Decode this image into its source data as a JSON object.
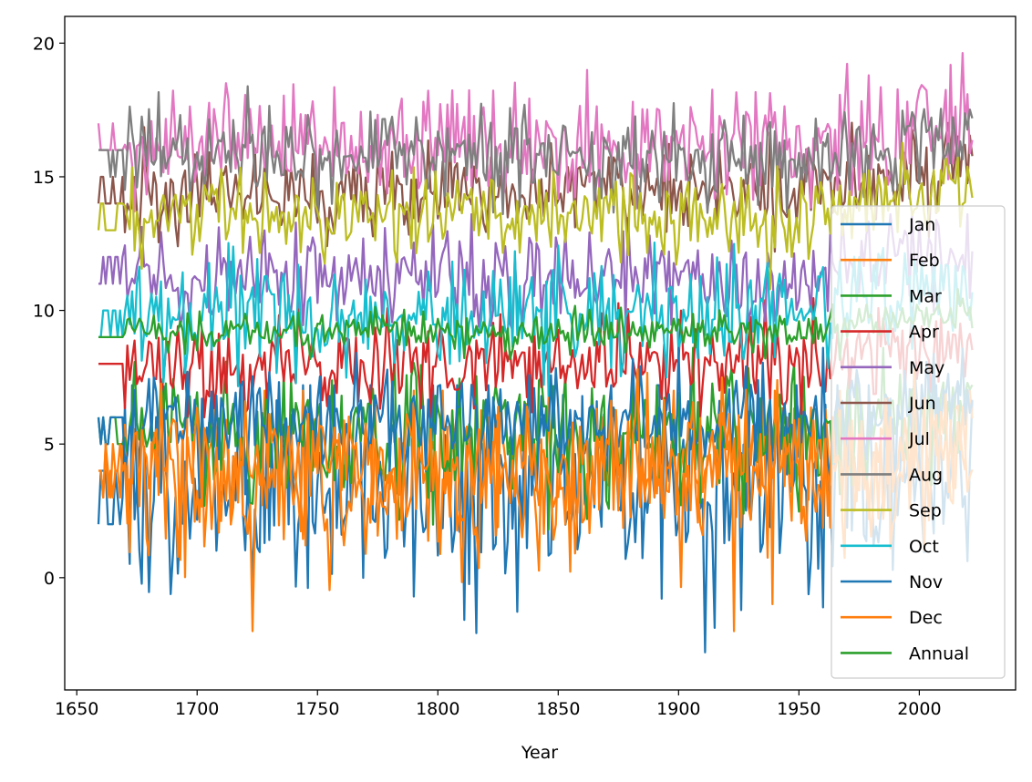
{
  "chart_data": {
    "type": "line",
    "xlabel": "Year",
    "ylabel": "",
    "xlim": [
      1645,
      2040
    ],
    "ylim": [
      -4.2,
      21
    ],
    "xticks": [
      1650,
      1700,
      1750,
      1800,
      1850,
      1900,
      1950,
      2000
    ],
    "yticks": [
      0,
      5,
      10,
      15,
      20
    ],
    "legend_position": "lower-right",
    "x_start": 1659,
    "x_end": 2022,
    "series": [
      {
        "name": "Jan",
        "color": "#1f77b4",
        "base": 3.3,
        "spread": 2.1,
        "min": -3.1,
        "max": 7.2
      },
      {
        "name": "Feb",
        "color": "#ff7f0e",
        "base": 3.9,
        "spread": 1.8,
        "min": -2.0,
        "max": 7.0
      },
      {
        "name": "Mar",
        "color": "#2ca02c",
        "base": 5.4,
        "spread": 1.3,
        "min": 1.8,
        "max": 8.6
      },
      {
        "name": "Apr",
        "color": "#d62728",
        "base": 8.0,
        "spread": 0.9,
        "min": 6.0,
        "max": 10.6
      },
      {
        "name": "May",
        "color": "#9467bd",
        "base": 11.3,
        "spread": 0.9,
        "min": 9.0,
        "max": 13.6
      },
      {
        "name": "Jun",
        "color": "#8c564b",
        "base": 14.5,
        "spread": 0.8,
        "min": 12.2,
        "max": 17.2
      },
      {
        "name": "Jul",
        "color": "#e377c2",
        "base": 16.2,
        "spread": 1.0,
        "min": 13.7,
        "max": 19.8
      },
      {
        "name": "Aug",
        "color": "#7f7f7f",
        "base": 15.8,
        "spread": 0.9,
        "min": 13.5,
        "max": 19.1
      },
      {
        "name": "Sep",
        "color": "#bcbd22",
        "base": 13.6,
        "spread": 0.8,
        "min": 10.6,
        "max": 16.7
      },
      {
        "name": "Oct",
        "color": "#17becf",
        "base": 9.8,
        "spread": 1.0,
        "min": 6.8,
        "max": 12.6
      },
      {
        "name": "Nov",
        "color": "#1f77b4",
        "base": 5.8,
        "spread": 1.0,
        "min": 2.8,
        "max": 8.6
      },
      {
        "name": "Dec",
        "color": "#ff7f0e",
        "base": 4.1,
        "spread": 1.4,
        "min": -0.5,
        "max": 7.8
      },
      {
        "name": "Annual",
        "color": "#2ca02c",
        "base": 9.2,
        "spread": 0.4,
        "min": 7.8,
        "max": 10.8
      }
    ]
  }
}
